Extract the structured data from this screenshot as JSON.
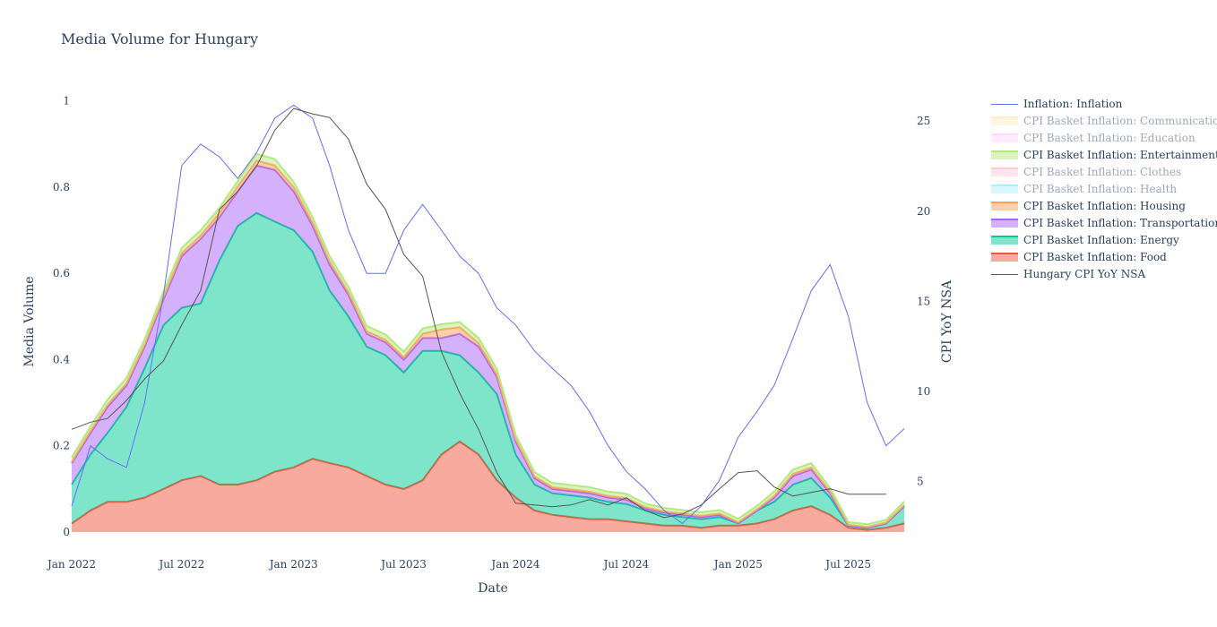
{
  "chart_data": {
    "type": "area",
    "title": "Media Volume for Hungary",
    "xlabel": "Date",
    "ylabel": "Media Volume",
    "y2label": "CPI YoY NSA",
    "ylim": [
      0,
      1.02
    ],
    "y2lim": [
      2.2,
      26.6
    ],
    "xlim": [
      "2022-01-01",
      "2025-10-20"
    ],
    "x_ticks": [
      {
        "date": "2022-01-01",
        "label": "Jan 2022"
      },
      {
        "date": "2022-07-01",
        "label": "Jul 2022"
      },
      {
        "date": "2023-01-01",
        "label": "Jan 2023"
      },
      {
        "date": "2023-07-01",
        "label": "Jul 2023"
      },
      {
        "date": "2024-01-01",
        "label": "Jan 2024"
      },
      {
        "date": "2024-07-01",
        "label": "Jul 2024"
      },
      {
        "date": "2025-01-01",
        "label": "Jan 2025"
      },
      {
        "date": "2025-07-01",
        "label": "Jul 2025"
      }
    ],
    "y_ticks": [
      {
        "value": 0,
        "label": "0"
      },
      {
        "value": 0.2,
        "label": "0.2"
      },
      {
        "value": 0.4,
        "label": "0.4"
      },
      {
        "value": 0.6,
        "label": "0.6"
      },
      {
        "value": 0.8,
        "label": "0.8"
      },
      {
        "value": 1,
        "label": "1"
      }
    ],
    "y2_ticks": [
      {
        "value": 5,
        "label": "5"
      },
      {
        "value": 10,
        "label": "10"
      },
      {
        "value": 15,
        "label": "15"
      },
      {
        "value": 20,
        "label": "20"
      },
      {
        "value": 25,
        "label": "25"
      }
    ],
    "dates": [
      "2022-01-01",
      "2022-02-01",
      "2022-03-01",
      "2022-04-01",
      "2022-05-01",
      "2022-06-01",
      "2022-07-01",
      "2022-08-01",
      "2022-09-01",
      "2022-10-01",
      "2022-11-01",
      "2022-12-01",
      "2023-01-01",
      "2023-02-01",
      "2023-03-01",
      "2023-04-01",
      "2023-05-01",
      "2023-06-01",
      "2023-07-01",
      "2023-08-01",
      "2023-09-01",
      "2023-10-01",
      "2023-11-01",
      "2023-12-01",
      "2024-01-01",
      "2024-02-01",
      "2024-03-01",
      "2024-04-01",
      "2024-05-01",
      "2024-06-01",
      "2024-07-01",
      "2024-08-01",
      "2024-09-01",
      "2024-10-01",
      "2024-11-01",
      "2024-12-01",
      "2025-01-01",
      "2025-02-01",
      "2025-03-01",
      "2025-04-01",
      "2025-05-01",
      "2025-06-01",
      "2025-07-01",
      "2025-08-01",
      "2025-09-01",
      "2025-10-01"
    ],
    "stack_series": [
      {
        "name": "CPI Basket Inflation: Food",
        "color": "#ef553b",
        "hidden": false,
        "values": [
          0.02,
          0.05,
          0.07,
          0.07,
          0.08,
          0.1,
          0.12,
          0.13,
          0.11,
          0.11,
          0.12,
          0.14,
          0.15,
          0.17,
          0.16,
          0.15,
          0.13,
          0.11,
          0.1,
          0.12,
          0.18,
          0.21,
          0.18,
          0.12,
          0.08,
          0.05,
          0.04,
          0.035,
          0.03,
          0.03,
          0.025,
          0.02,
          0.015,
          0.015,
          0.01,
          0.015,
          0.015,
          0.02,
          0.03,
          0.05,
          0.06,
          0.04,
          0.01,
          0.005,
          0.01,
          0.02
        ]
      },
      {
        "name": "CPI Basket Inflation: Energy",
        "color": "#00cc96",
        "hidden": false,
        "values": [
          0.09,
          0.13,
          0.16,
          0.22,
          0.3,
          0.38,
          0.4,
          0.4,
          0.52,
          0.6,
          0.62,
          0.58,
          0.55,
          0.48,
          0.4,
          0.35,
          0.3,
          0.3,
          0.27,
          0.3,
          0.24,
          0.2,
          0.19,
          0.2,
          0.1,
          0.06,
          0.05,
          0.05,
          0.05,
          0.04,
          0.04,
          0.03,
          0.025,
          0.02,
          0.02,
          0.02,
          0.005,
          0.03,
          0.04,
          0.06,
          0.065,
          0.04,
          0.005,
          0.005,
          0.01,
          0.04
        ]
      },
      {
        "name": "CPI Basket Inflation: Transportation",
        "color": "#ab63fa",
        "hidden": false,
        "values": [
          0.05,
          0.05,
          0.06,
          0.05,
          0.05,
          0.06,
          0.12,
          0.15,
          0.1,
          0.08,
          0.11,
          0.12,
          0.09,
          0.06,
          0.06,
          0.05,
          0.03,
          0.03,
          0.03,
          0.03,
          0.03,
          0.05,
          0.06,
          0.04,
          0.03,
          0.015,
          0.01,
          0.01,
          0.01,
          0.01,
          0.01,
          0.005,
          0.005,
          0.005,
          0.005,
          0.005,
          0.0,
          0.0,
          0.01,
          0.02,
          0.02,
          0.01,
          0.0,
          0.0,
          0.0,
          0.0
        ]
      },
      {
        "name": "CPI Basket Inflation: Housing",
        "color": "#ffa15a",
        "hidden": false,
        "values": [
          0.003,
          0.005,
          0.005,
          0.005,
          0.005,
          0.006,
          0.007,
          0.008,
          0.01,
          0.012,
          0.012,
          0.01,
          0.01,
          0.008,
          0.008,
          0.006,
          0.006,
          0.006,
          0.006,
          0.01,
          0.02,
          0.015,
          0.008,
          0.006,
          0.005,
          0.004,
          0.004,
          0.004,
          0.004,
          0.004,
          0.004,
          0.003,
          0.003,
          0.003,
          0.003,
          0.003,
          0.003,
          0.003,
          0.004,
          0.005,
          0.005,
          0.004,
          0.002,
          0.002,
          0.002,
          0.003
        ]
      },
      {
        "name": "CPI Basket Inflation: Entertainment",
        "color": "#b6e880",
        "hidden": false,
        "values": [
          0.01,
          0.01,
          0.012,
          0.012,
          0.012,
          0.012,
          0.012,
          0.012,
          0.012,
          0.012,
          0.015,
          0.015,
          0.012,
          0.012,
          0.012,
          0.012,
          0.012,
          0.012,
          0.012,
          0.012,
          0.012,
          0.012,
          0.012,
          0.012,
          0.01,
          0.01,
          0.01,
          0.01,
          0.01,
          0.01,
          0.01,
          0.008,
          0.008,
          0.008,
          0.008,
          0.008,
          0.008,
          0.008,
          0.01,
          0.01,
          0.01,
          0.008,
          0.006,
          0.006,
          0.006,
          0.008
        ]
      },
      {
        "name": "CPI Basket Inflation: Health",
        "color": "#19d3f3",
        "hidden": true,
        "values": []
      },
      {
        "name": "CPI Basket Inflation: Clothes",
        "color": "#ff6692",
        "hidden": true,
        "values": []
      },
      {
        "name": "CPI Basket Inflation: Education",
        "color": "#ff97ff",
        "hidden": true,
        "values": []
      },
      {
        "name": "CPI Basket Inflation: Communication",
        "color": "#fecb52",
        "hidden": true,
        "values": []
      }
    ],
    "inflation_line": {
      "name": "Inflation: Inflation",
      "color": "#636efa",
      "values": [
        0.06,
        0.2,
        0.17,
        0.15,
        0.3,
        0.55,
        0.85,
        0.9,
        0.87,
        0.82,
        0.88,
        0.96,
        0.99,
        0.96,
        0.85,
        0.7,
        0.6,
        0.6,
        0.7,
        0.76,
        0.7,
        0.64,
        0.6,
        0.52,
        0.48,
        0.42,
        0.38,
        0.34,
        0.28,
        0.2,
        0.14,
        0.1,
        0.05,
        0.02,
        0.06,
        0.12,
        0.22,
        0.28,
        0.34,
        0.45,
        0.56,
        0.62,
        0.5,
        0.3,
        0.2,
        0.24
      ]
    },
    "cpi_line": {
      "name": "Hungary CPI YoY NSA",
      "color": "#555555",
      "axis": "y2",
      "points": [
        {
          "date": "2022-01-01",
          "value": 7.9
        },
        {
          "date": "2022-02-01",
          "value": 8.3
        },
        {
          "date": "2022-03-01",
          "value": 8.5
        },
        {
          "date": "2022-04-01",
          "value": 9.5
        },
        {
          "date": "2022-05-01",
          "value": 10.7
        },
        {
          "date": "2022-06-01",
          "value": 11.7
        },
        {
          "date": "2022-07-01",
          "value": 13.7
        },
        {
          "date": "2022-08-01",
          "value": 15.6
        },
        {
          "date": "2022-09-01",
          "value": 20.1
        },
        {
          "date": "2022-10-01",
          "value": 21.1
        },
        {
          "date": "2022-11-01",
          "value": 22.5
        },
        {
          "date": "2022-12-01",
          "value": 24.5
        },
        {
          "date": "2023-01-01",
          "value": 25.7
        },
        {
          "date": "2023-02-01",
          "value": 25.4
        },
        {
          "date": "2023-03-01",
          "value": 25.2
        },
        {
          "date": "2023-04-01",
          "value": 24.0
        },
        {
          "date": "2023-05-01",
          "value": 21.5
        },
        {
          "date": "2023-06-01",
          "value": 20.1
        },
        {
          "date": "2023-07-01",
          "value": 17.6
        },
        {
          "date": "2023-08-01",
          "value": 16.4
        },
        {
          "date": "2023-09-01",
          "value": 12.2
        },
        {
          "date": "2023-10-01",
          "value": 9.9
        },
        {
          "date": "2023-11-01",
          "value": 7.9
        },
        {
          "date": "2023-12-01",
          "value": 5.5
        },
        {
          "date": "2024-01-01",
          "value": 3.8
        },
        {
          "date": "2024-02-01",
          "value": 3.7
        },
        {
          "date": "2024-03-01",
          "value": 3.6
        },
        {
          "date": "2024-04-01",
          "value": 3.7
        },
        {
          "date": "2024-05-01",
          "value": 4.0
        },
        {
          "date": "2024-06-01",
          "value": 3.7
        },
        {
          "date": "2024-07-01",
          "value": 4.1
        },
        {
          "date": "2024-08-01",
          "value": 3.4
        },
        {
          "date": "2024-09-01",
          "value": 3.0
        },
        {
          "date": "2024-10-01",
          "value": 3.2
        },
        {
          "date": "2024-11-01",
          "value": 3.7
        },
        {
          "date": "2024-12-01",
          "value": 4.6
        },
        {
          "date": "2025-01-01",
          "value": 5.5
        },
        {
          "date": "2025-02-01",
          "value": 5.6
        },
        {
          "date": "2025-03-01",
          "value": 4.7
        },
        {
          "date": "2025-04-01",
          "value": 4.2
        },
        {
          "date": "2025-05-01",
          "value": 4.4
        },
        {
          "date": "2025-06-01",
          "value": 4.6
        },
        {
          "date": "2025-07-01",
          "value": 4.3
        },
        {
          "date": "2025-08-01",
          "value": 4.3
        },
        {
          "date": "2025-09-01",
          "value": 4.3
        }
      ]
    }
  },
  "legend": {
    "placement": "right",
    "items": [
      {
        "label": "Inflation: Inflation",
        "color": "#636efa",
        "kind": "line",
        "hidden": false
      },
      {
        "label": "CPI Basket Inflation: Communication",
        "color": "#fecb52",
        "kind": "area",
        "hidden": true
      },
      {
        "label": "CPI Basket Inflation: Education",
        "color": "#ff97ff",
        "kind": "area",
        "hidden": true
      },
      {
        "label": "CPI Basket Inflation: Entertainment",
        "color": "#b6e880",
        "kind": "area",
        "hidden": false
      },
      {
        "label": "CPI Basket Inflation: Clothes",
        "color": "#ff6692",
        "kind": "area",
        "hidden": true
      },
      {
        "label": "CPI Basket Inflation: Health",
        "color": "#19d3f3",
        "kind": "area",
        "hidden": true
      },
      {
        "label": "CPI Basket Inflation: Housing",
        "color": "#ffa15a",
        "kind": "area",
        "hidden": false
      },
      {
        "label": "CPI Basket Inflation: Transportation",
        "color": "#ab63fa",
        "kind": "area",
        "hidden": false
      },
      {
        "label": "CPI Basket Inflation: Energy",
        "color": "#00cc96",
        "kind": "area",
        "hidden": false
      },
      {
        "label": "CPI Basket Inflation: Food",
        "color": "#ef553b",
        "kind": "area",
        "hidden": false
      },
      {
        "label": "Hungary CPI YoY NSA",
        "color": "#555555",
        "kind": "line",
        "hidden": false
      }
    ]
  }
}
